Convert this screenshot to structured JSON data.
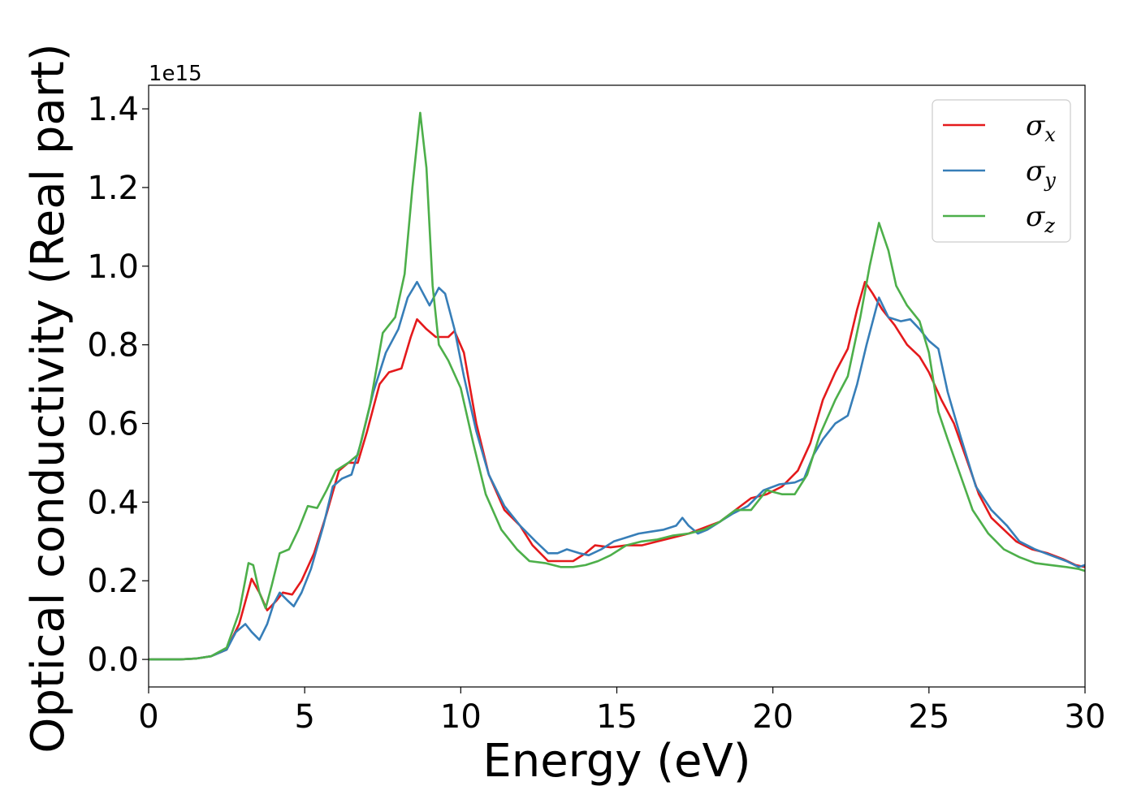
{
  "chart_data": {
    "type": "line",
    "title": "",
    "xlabel": "Energy (eV)",
    "ylabel": "Optical conductivity (Real part)",
    "y_offset_text": "1e15",
    "xlim": [
      0,
      30
    ],
    "ylim": [
      -0.07,
      1.46
    ],
    "x_ticks": [
      0,
      5,
      10,
      15,
      20,
      25,
      30
    ],
    "y_ticks": [
      0.0,
      0.2,
      0.4,
      0.6,
      0.8,
      1.0,
      1.2,
      1.4
    ],
    "x_tick_labels": [
      "0",
      "5",
      "10",
      "15",
      "20",
      "25",
      "30"
    ],
    "y_tick_labels": [
      "0.0",
      "0.2",
      "0.4",
      "0.6",
      "0.8",
      "1.0",
      "1.2",
      "1.4"
    ],
    "grid": false,
    "legend_position": "top-right",
    "series": [
      {
        "name": "σx",
        "name_base": "σ",
        "name_sub": "x",
        "color": "#e41a1c",
        "points": [
          [
            0,
            0
          ],
          [
            1,
            0
          ],
          [
            1.5,
            0.002
          ],
          [
            2,
            0.008
          ],
          [
            2.5,
            0.025
          ],
          [
            2.9,
            0.09
          ],
          [
            3.3,
            0.205
          ],
          [
            3.55,
            0.17
          ],
          [
            3.8,
            0.125
          ],
          [
            4.1,
            0.15
          ],
          [
            4.3,
            0.17
          ],
          [
            4.6,
            0.165
          ],
          [
            4.9,
            0.2
          ],
          [
            5.3,
            0.27
          ],
          [
            5.7,
            0.37
          ],
          [
            6.1,
            0.48
          ],
          [
            6.4,
            0.5
          ],
          [
            6.7,
            0.5
          ],
          [
            7,
            0.58
          ],
          [
            7.4,
            0.7
          ],
          [
            7.7,
            0.73
          ],
          [
            8.1,
            0.74
          ],
          [
            8.4,
            0.82
          ],
          [
            8.6,
            0.865
          ],
          [
            8.9,
            0.84
          ],
          [
            9.2,
            0.82
          ],
          [
            9.6,
            0.82
          ],
          [
            9.8,
            0.835
          ],
          [
            10.1,
            0.78
          ],
          [
            10.5,
            0.6
          ],
          [
            10.9,
            0.47
          ],
          [
            11.4,
            0.38
          ],
          [
            11.9,
            0.34
          ],
          [
            12.3,
            0.29
          ],
          [
            12.8,
            0.25
          ],
          [
            13.2,
            0.25
          ],
          [
            13.6,
            0.25
          ],
          [
            14,
            0.27
          ],
          [
            14.3,
            0.29
          ],
          [
            14.8,
            0.285
          ],
          [
            15.3,
            0.29
          ],
          [
            15.8,
            0.29
          ],
          [
            16.3,
            0.3
          ],
          [
            16.8,
            0.31
          ],
          [
            17.3,
            0.32
          ],
          [
            17.8,
            0.335
          ],
          [
            18.3,
            0.35
          ],
          [
            18.8,
            0.38
          ],
          [
            19.3,
            0.41
          ],
          [
            19.8,
            0.42
          ],
          [
            20.3,
            0.44
          ],
          [
            20.8,
            0.48
          ],
          [
            21.2,
            0.55
          ],
          [
            21.6,
            0.66
          ],
          [
            22,
            0.73
          ],
          [
            22.4,
            0.79
          ],
          [
            22.7,
            0.89
          ],
          [
            22.95,
            0.96
          ],
          [
            23.2,
            0.93
          ],
          [
            23.5,
            0.89
          ],
          [
            23.9,
            0.85
          ],
          [
            24.3,
            0.8
          ],
          [
            24.7,
            0.77
          ],
          [
            25,
            0.73
          ],
          [
            25.4,
            0.66
          ],
          [
            25.8,
            0.6
          ],
          [
            26.2,
            0.51
          ],
          [
            26.6,
            0.42
          ],
          [
            27,
            0.36
          ],
          [
            27.4,
            0.33
          ],
          [
            27.8,
            0.3
          ],
          [
            28.3,
            0.28
          ],
          [
            28.8,
            0.27
          ],
          [
            29.3,
            0.255
          ],
          [
            29.7,
            0.24
          ],
          [
            30,
            0.235
          ]
        ]
      },
      {
        "name": "σy",
        "name_base": "σ",
        "name_sub": "y",
        "color": "#377eb8",
        "points": [
          [
            0,
            0
          ],
          [
            1,
            0
          ],
          [
            1.5,
            0.002
          ],
          [
            2,
            0.008
          ],
          [
            2.5,
            0.025
          ],
          [
            2.8,
            0.07
          ],
          [
            3.1,
            0.09
          ],
          [
            3.3,
            0.07
          ],
          [
            3.55,
            0.05
          ],
          [
            3.8,
            0.09
          ],
          [
            4,
            0.14
          ],
          [
            4.2,
            0.17
          ],
          [
            4.45,
            0.15
          ],
          [
            4.65,
            0.135
          ],
          [
            4.9,
            0.17
          ],
          [
            5.2,
            0.23
          ],
          [
            5.6,
            0.34
          ],
          [
            5.9,
            0.44
          ],
          [
            6.2,
            0.46
          ],
          [
            6.5,
            0.47
          ],
          [
            6.8,
            0.55
          ],
          [
            7.2,
            0.68
          ],
          [
            7.6,
            0.78
          ],
          [
            8,
            0.84
          ],
          [
            8.3,
            0.92
          ],
          [
            8.6,
            0.96
          ],
          [
            8.8,
            0.93
          ],
          [
            9,
            0.9
          ],
          [
            9.3,
            0.945
          ],
          [
            9.5,
            0.93
          ],
          [
            9.8,
            0.84
          ],
          [
            10.1,
            0.72
          ],
          [
            10.5,
            0.58
          ],
          [
            10.9,
            0.47
          ],
          [
            11.4,
            0.39
          ],
          [
            11.9,
            0.34
          ],
          [
            12.4,
            0.3
          ],
          [
            12.8,
            0.27
          ],
          [
            13.1,
            0.27
          ],
          [
            13.4,
            0.28
          ],
          [
            13.8,
            0.27
          ],
          [
            14.1,
            0.265
          ],
          [
            14.5,
            0.28
          ],
          [
            14.9,
            0.3
          ],
          [
            15.3,
            0.31
          ],
          [
            15.7,
            0.32
          ],
          [
            16.1,
            0.325
          ],
          [
            16.5,
            0.33
          ],
          [
            16.9,
            0.34
          ],
          [
            17.1,
            0.36
          ],
          [
            17.3,
            0.34
          ],
          [
            17.6,
            0.32
          ],
          [
            17.9,
            0.33
          ],
          [
            18.3,
            0.35
          ],
          [
            18.7,
            0.37
          ],
          [
            19.2,
            0.39
          ],
          [
            19.7,
            0.43
          ],
          [
            20.2,
            0.445
          ],
          [
            20.7,
            0.45
          ],
          [
            21,
            0.46
          ],
          [
            21.3,
            0.52
          ],
          [
            21.6,
            0.56
          ],
          [
            22,
            0.6
          ],
          [
            22.4,
            0.62
          ],
          [
            22.7,
            0.7
          ],
          [
            23,
            0.8
          ],
          [
            23.4,
            0.92
          ],
          [
            23.7,
            0.87
          ],
          [
            24.1,
            0.86
          ],
          [
            24.4,
            0.865
          ],
          [
            24.7,
            0.84
          ],
          [
            25,
            0.81
          ],
          [
            25.3,
            0.79
          ],
          [
            25.6,
            0.68
          ],
          [
            26,
            0.57
          ],
          [
            26.5,
            0.44
          ],
          [
            27,
            0.38
          ],
          [
            27.5,
            0.34
          ],
          [
            27.9,
            0.3
          ],
          [
            28.4,
            0.28
          ],
          [
            28.9,
            0.265
          ],
          [
            29.4,
            0.25
          ],
          [
            29.8,
            0.235
          ],
          [
            30,
            0.24
          ]
        ]
      },
      {
        "name": "σz",
        "name_base": "σ",
        "name_sub": "z",
        "color": "#4daf4a",
        "points": [
          [
            0,
            0
          ],
          [
            1,
            0
          ],
          [
            1.5,
            0.002
          ],
          [
            2,
            0.008
          ],
          [
            2.5,
            0.03
          ],
          [
            2.9,
            0.12
          ],
          [
            3.2,
            0.245
          ],
          [
            3.35,
            0.24
          ],
          [
            3.55,
            0.17
          ],
          [
            3.75,
            0.13
          ],
          [
            3.95,
            0.19
          ],
          [
            4.2,
            0.27
          ],
          [
            4.5,
            0.28
          ],
          [
            4.8,
            0.33
          ],
          [
            5.1,
            0.39
          ],
          [
            5.4,
            0.385
          ],
          [
            5.7,
            0.43
          ],
          [
            6,
            0.48
          ],
          [
            6.4,
            0.5
          ],
          [
            6.7,
            0.52
          ],
          [
            7.1,
            0.65
          ],
          [
            7.5,
            0.83
          ],
          [
            7.9,
            0.87
          ],
          [
            8.2,
            0.98
          ],
          [
            8.45,
            1.2
          ],
          [
            8.7,
            1.39
          ],
          [
            8.9,
            1.25
          ],
          [
            9.1,
            0.95
          ],
          [
            9.3,
            0.8
          ],
          [
            9.6,
            0.76
          ],
          [
            10,
            0.69
          ],
          [
            10.4,
            0.55
          ],
          [
            10.8,
            0.42
          ],
          [
            11.3,
            0.33
          ],
          [
            11.8,
            0.28
          ],
          [
            12.2,
            0.25
          ],
          [
            12.7,
            0.245
          ],
          [
            13.2,
            0.235
          ],
          [
            13.6,
            0.235
          ],
          [
            14,
            0.24
          ],
          [
            14.4,
            0.25
          ],
          [
            14.8,
            0.265
          ],
          [
            15.3,
            0.29
          ],
          [
            15.8,
            0.3
          ],
          [
            16.3,
            0.305
          ],
          [
            16.8,
            0.315
          ],
          [
            17.3,
            0.32
          ],
          [
            17.8,
            0.33
          ],
          [
            18.3,
            0.35
          ],
          [
            18.8,
            0.38
          ],
          [
            19.3,
            0.38
          ],
          [
            19.8,
            0.43
          ],
          [
            20.3,
            0.42
          ],
          [
            20.7,
            0.42
          ],
          [
            21.1,
            0.47
          ],
          [
            21.5,
            0.57
          ],
          [
            22,
            0.66
          ],
          [
            22.4,
            0.72
          ],
          [
            22.8,
            0.87
          ],
          [
            23.1,
            1.0
          ],
          [
            23.4,
            1.11
          ],
          [
            23.7,
            1.04
          ],
          [
            23.95,
            0.95
          ],
          [
            24.3,
            0.9
          ],
          [
            24.7,
            0.86
          ],
          [
            25,
            0.78
          ],
          [
            25.3,
            0.63
          ],
          [
            25.6,
            0.56
          ],
          [
            26,
            0.47
          ],
          [
            26.4,
            0.38
          ],
          [
            26.9,
            0.32
          ],
          [
            27.4,
            0.28
          ],
          [
            27.9,
            0.26
          ],
          [
            28.4,
            0.245
          ],
          [
            28.9,
            0.24
          ],
          [
            29.4,
            0.235
          ],
          [
            29.8,
            0.23
          ],
          [
            30,
            0.225
          ]
        ]
      }
    ]
  }
}
